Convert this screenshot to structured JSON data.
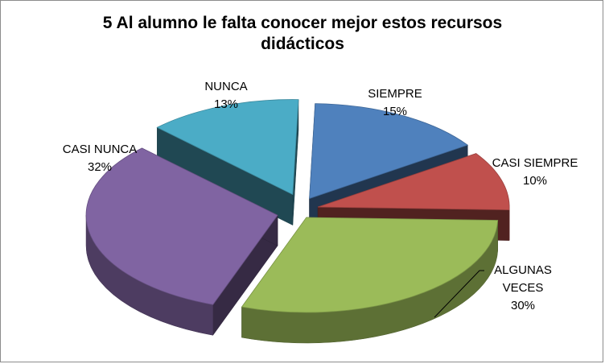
{
  "chart_data": {
    "type": "pie",
    "style": "3d-exploded",
    "title_lines": [
      "5 Al alumno le falta conocer mejor estos recursos",
      "didácticos"
    ],
    "slices": [
      {
        "name": "SIEMPRE",
        "value": 15,
        "pct_label": "15%",
        "color": "#4f81bd"
      },
      {
        "name": "CASI SIEMPRE",
        "value": 10,
        "pct_label": "10%",
        "color": "#c0504d"
      },
      {
        "name": "ALGUNAS VECES",
        "value": 30,
        "pct_label": "30%",
        "color": "#9bbb59"
      },
      {
        "name": "CASI NUNCA",
        "value": 32,
        "pct_label": "32%",
        "color": "#8064a2"
      },
      {
        "name": "NUNCA",
        "value": 13,
        "pct_label": "13%",
        "color": "#4bacc6"
      }
    ],
    "legend": "none",
    "data_labels": "category name and percentage"
  }
}
